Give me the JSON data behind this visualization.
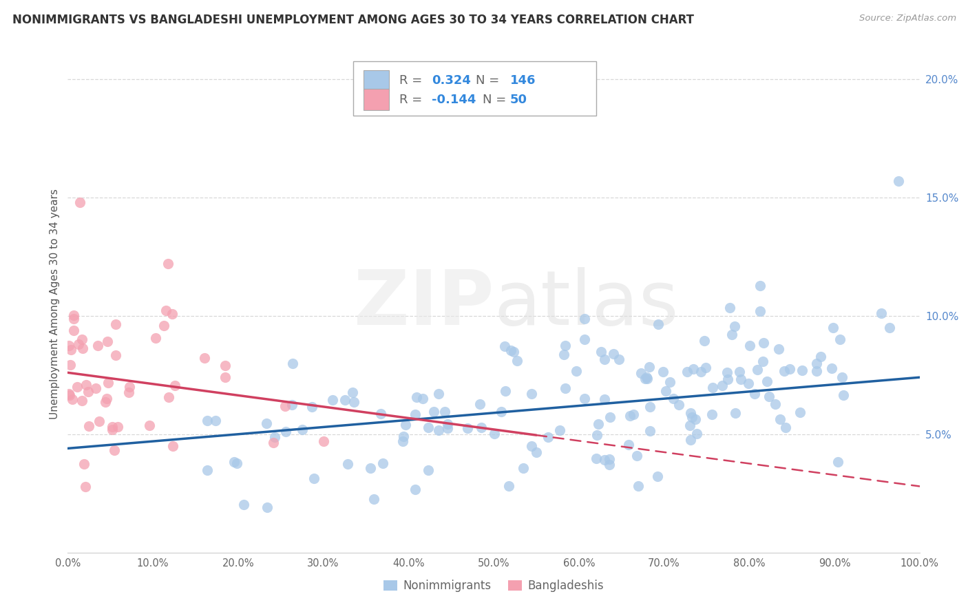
{
  "title": "NONIMMIGRANTS VS BANGLADESHI UNEMPLOYMENT AMONG AGES 30 TO 34 YEARS CORRELATION CHART",
  "source": "Source: ZipAtlas.com",
  "ylabel": "Unemployment Among Ages 30 to 34 years",
  "xlim": [
    0.0,
    1.0
  ],
  "ylim": [
    0.0,
    0.21
  ],
  "xticks": [
    0.0,
    0.1,
    0.2,
    0.3,
    0.4,
    0.5,
    0.6,
    0.7,
    0.8,
    0.9,
    1.0
  ],
  "xticklabels": [
    "0.0%",
    "10.0%",
    "20.0%",
    "30.0%",
    "40.0%",
    "50.0%",
    "60.0%",
    "70.0%",
    "80.0%",
    "90.0%",
    "100.0%"
  ],
  "yticks": [
    0.05,
    0.1,
    0.15,
    0.2
  ],
  "yticklabels": [
    "5.0%",
    "10.0%",
    "15.0%",
    "20.0%"
  ],
  "blue_color": "#a8c8e8",
  "pink_color": "#f4a0b0",
  "blue_line_color": "#2060a0",
  "pink_line_color": "#d04060",
  "legend_r_blue": "0.324",
  "legend_n_blue": "146",
  "legend_r_pink": "-0.144",
  "legend_n_pink": "50",
  "background_color": "#ffffff",
  "grid_color": "#d8d8d8",
  "nonimmigrant_seed": 42,
  "bangladeshi_seed": 99,
  "blue_intercept": 0.044,
  "blue_slope": 0.03,
  "pink_intercept": 0.076,
  "pink_slope": -0.048
}
